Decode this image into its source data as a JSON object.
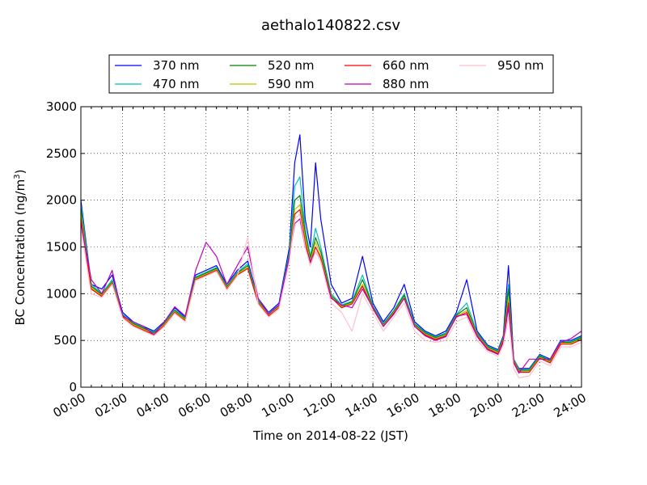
{
  "chart_data": {
    "type": "line",
    "title": "aethalo140822.csv",
    "xlabel": "Time on 2014-08-22 (JST)",
    "ylabel": "BC Concentration (ng/m3)",
    "ylabel_parts": {
      "text": "BC Concentration (ng/m",
      "sup": "3",
      "end": ")"
    },
    "x_range_hours": [
      0,
      24
    ],
    "ylim": [
      0,
      3000
    ],
    "grid": true,
    "legend_position": "top",
    "x_ticks": [
      "00:00",
      "02:00",
      "04:00",
      "06:00",
      "08:00",
      "10:00",
      "12:00",
      "14:00",
      "16:00",
      "18:00",
      "20:00",
      "22:00",
      "24:00"
    ],
    "y_ticks": [
      "0",
      "500",
      "1000",
      "1500",
      "2000",
      "2500",
      "3000"
    ],
    "x_hours": [
      0,
      0.5,
      1,
      1.5,
      2,
      2.5,
      3,
      3.5,
      4,
      4.5,
      5,
      5.5,
      6,
      6.5,
      7,
      7.5,
      8,
      8.5,
      9,
      9.5,
      10,
      10.25,
      10.5,
      10.75,
      11,
      11.25,
      11.5,
      12,
      12.5,
      13,
      13.5,
      14,
      14.5,
      15,
      15.5,
      16,
      16.5,
      17,
      17.5,
      18,
      18.5,
      19,
      19.5,
      20,
      20.25,
      20.5,
      20.75,
      21,
      21.5,
      22,
      22.5,
      23,
      23.5,
      24
    ],
    "series": [
      {
        "name": "370 nm",
        "color": "#0000ff",
        "values": [
          2000,
          1100,
          1050,
          1200,
          800,
          700,
          650,
          600,
          700,
          850,
          750,
          1200,
          1250,
          1300,
          1100,
          1250,
          1350,
          950,
          800,
          900,
          1500,
          2400,
          2700,
          1800,
          1500,
          2400,
          1800,
          1100,
          900,
          950,
          1400,
          900,
          700,
          850,
          1100,
          700,
          600,
          550,
          600,
          800,
          1150,
          600,
          450,
          400,
          550,
          1300,
          300,
          200,
          200,
          350,
          300,
          500,
          500,
          550
        ]
      },
      {
        "name": "470 nm",
        "color": "#00bfbf",
        "values": [
          1950,
          1100,
          1000,
          1150,
          780,
          690,
          640,
          590,
          690,
          830,
          740,
          1180,
          1230,
          1280,
          1080,
          1230,
          1320,
          930,
          790,
          880,
          1450,
          2150,
          2250,
          1700,
          1400,
          1700,
          1500,
          1000,
          880,
          920,
          1200,
          870,
          680,
          820,
          1000,
          680,
          590,
          540,
          580,
          780,
          900,
          580,
          440,
          390,
          530,
          1100,
          300,
          190,
          190,
          340,
          290,
          490,
          490,
          540
        ]
      },
      {
        "name": "520 nm",
        "color": "#008000",
        "values": [
          1900,
          1080,
          990,
          1130,
          770,
          680,
          630,
          580,
          680,
          820,
          730,
          1170,
          1220,
          1270,
          1070,
          1220,
          1300,
          920,
          780,
          870,
          1420,
          2000,
          2050,
          1650,
          1380,
          1600,
          1450,
          980,
          870,
          910,
          1150,
          860,
          670,
          810,
          980,
          670,
          580,
          530,
          570,
          770,
          850,
          570,
          430,
          380,
          520,
          1050,
          290,
          180,
          180,
          330,
          280,
          480,
          480,
          530
        ]
      },
      {
        "name": "590 nm",
        "color": "#bfbf00",
        "values": [
          1850,
          1060,
          980,
          1120,
          760,
          670,
          620,
          570,
          670,
          810,
          720,
          1160,
          1210,
          1260,
          1060,
          1210,
          1280,
          910,
          770,
          860,
          1400,
          1900,
          1950,
          1600,
          1350,
          1550,
          1400,
          970,
          860,
          900,
          1100,
          850,
          660,
          800,
          960,
          660,
          570,
          520,
          560,
          760,
          820,
          560,
          420,
          370,
          510,
          950,
          280,
          170,
          170,
          320,
          270,
          470,
          470,
          520
        ]
      },
      {
        "name": "660 nm",
        "color": "#ff0000",
        "values": [
          1800,
          1050,
          970,
          1110,
          750,
          660,
          610,
          560,
          660,
          800,
          710,
          1150,
          1200,
          1250,
          1050,
          1200,
          1270,
          900,
          760,
          850,
          1380,
          1850,
          1900,
          1550,
          1330,
          1500,
          1380,
          960,
          850,
          890,
          1080,
          840,
          650,
          790,
          950,
          650,
          560,
          510,
          550,
          750,
          800,
          550,
          410,
          360,
          500,
          900,
          270,
          160,
          160,
          310,
          260,
          460,
          460,
          510
        ]
      },
      {
        "name": "880 nm",
        "color": "#bf00bf",
        "values": [
          1750,
          1150,
          1000,
          1250,
          760,
          700,
          650,
          560,
          700,
          860,
          760,
          1250,
          1550,
          1400,
          1100,
          1300,
          1500,
          950,
          780,
          880,
          1400,
          1750,
          1800,
          1500,
          1350,
          1450,
          1350,
          950,
          880,
          850,
          1050,
          850,
          650,
          780,
          950,
          650,
          550,
          500,
          540,
          760,
          780,
          540,
          400,
          350,
          480,
          850,
          260,
          150,
          300,
          300,
          300,
          480,
          520,
          600
        ]
      },
      {
        "name": "950 nm",
        "color": "#ffc0cb",
        "values": [
          1700,
          1000,
          960,
          1100,
          740,
          650,
          600,
          550,
          650,
          790,
          700,
          1140,
          1190,
          1240,
          1040,
          1190,
          1600,
          890,
          750,
          840,
          1350,
          1800,
          1850,
          1500,
          1300,
          1450,
          1350,
          900,
          800,
          600,
          1000,
          800,
          600,
          750,
          900,
          600,
          500,
          480,
          500,
          700,
          750,
          500,
          380,
          330,
          450,
          750,
          200,
          100,
          120,
          280,
          230,
          430,
          430,
          480
        ]
      }
    ]
  }
}
